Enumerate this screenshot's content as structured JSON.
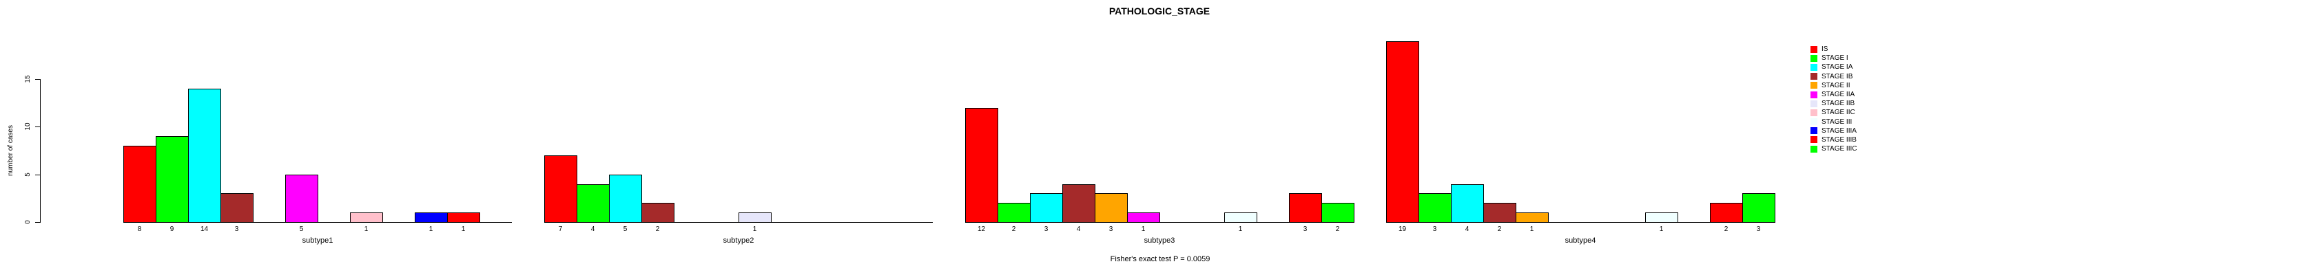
{
  "title": "PATHOLOGIC_STAGE",
  "footer": "Fisher's exact test P = 0.0059",
  "chart_data": {
    "type": "bar",
    "title": "PATHOLOGIC_STAGE",
    "xlabel": "",
    "ylabel": "number of cases",
    "ylim": [
      0,
      15
    ],
    "yticks": [
      0,
      5,
      10,
      15
    ],
    "grid": false,
    "legend_position": "right",
    "annotation": "Fisher's exact test P = 0.0059",
    "categories": [
      "IS",
      "STAGE I",
      "STAGE IA",
      "STAGE IB",
      "STAGE II",
      "STAGE IIA",
      "STAGE IIB",
      "STAGE IIC",
      "STAGE III",
      "STAGE IIIA",
      "STAGE IIIB",
      "STAGE IIIC"
    ],
    "colors": [
      "#FF0000",
      "#00FF00",
      "#00FFFF",
      "#A52A2A",
      "#FFA500",
      "#FF00FF",
      "#E6E6FA",
      "#FFC0CB",
      "#F0FFFF",
      "#0000FF",
      "#FF0000",
      "#00FF00"
    ],
    "series": [
      {
        "name": "subtype1",
        "values": [
          8,
          9,
          14,
          3,
          0,
          5,
          0,
          1,
          0,
          1,
          1,
          0
        ]
      },
      {
        "name": "subtype2",
        "values": [
          7,
          4,
          5,
          2,
          0,
          0,
          1,
          0,
          0,
          0,
          0,
          0
        ]
      },
      {
        "name": "subtype3",
        "values": [
          12,
          2,
          3,
          4,
          3,
          1,
          0,
          0,
          1,
          0,
          3,
          2
        ]
      },
      {
        "name": "subtype4",
        "values": [
          19,
          3,
          4,
          2,
          1,
          0,
          0,
          0,
          1,
          0,
          2,
          3
        ]
      }
    ]
  }
}
